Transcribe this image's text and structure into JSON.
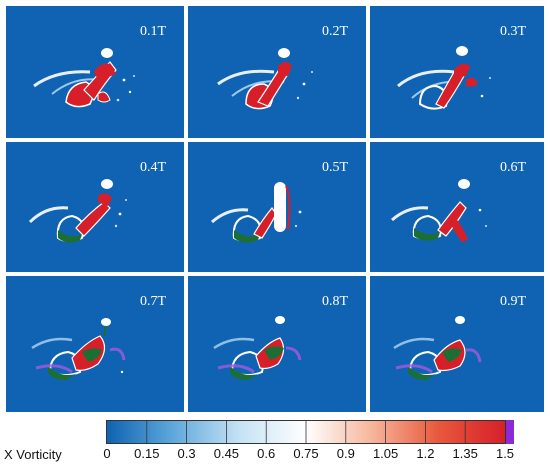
{
  "panels": [
    {
      "label": "0.1T"
    },
    {
      "label": "0.2T"
    },
    {
      "label": "0.3T"
    },
    {
      "label": "0.4T"
    },
    {
      "label": "0.5T"
    },
    {
      "label": "0.6T"
    },
    {
      "label": "0.7T"
    },
    {
      "label": "0.8T"
    },
    {
      "label": "0.9T"
    }
  ],
  "colorbar": {
    "label": "X Vorticity",
    "ticks": [
      "0",
      "0.15",
      "0.3",
      "0.45",
      "0.6",
      "0.75",
      "0.9",
      "1.05",
      "1.2",
      "1.35",
      "1.5"
    ],
    "colors": [
      "#0f63b2",
      "#5fa8dc",
      "#c5e2f5",
      "#ffffff",
      "#f6b59a",
      "#e8583c",
      "#d71f2a"
    ]
  }
}
